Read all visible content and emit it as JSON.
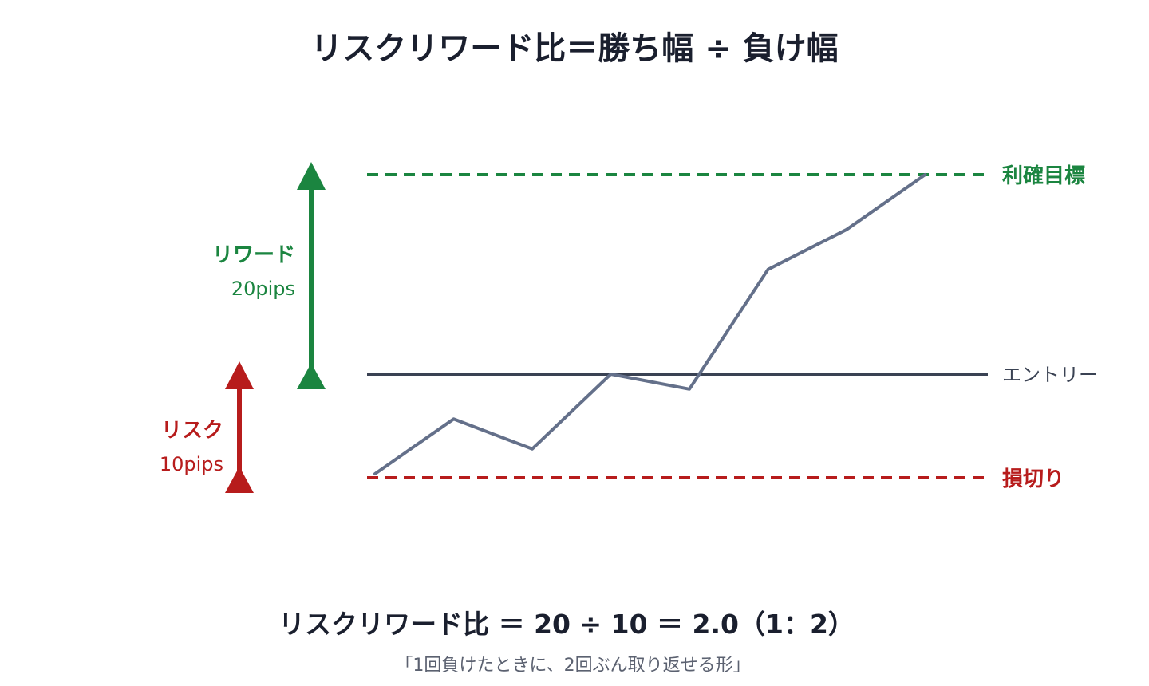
{
  "title": "リスクリワード比＝勝ち幅 ÷ 負け幅",
  "levels": {
    "take_profit": "利確目標",
    "entry": "エントリー",
    "stop_loss": "損切り"
  },
  "reward": {
    "label": "リワード",
    "value": "20pips"
  },
  "risk": {
    "label": "リスク",
    "value": "10pips"
  },
  "formula": "リスクリワード比 ＝ 20 ÷ 10 ＝ 2.0（1：2）",
  "caption": "「1回負けたときに、2回ぶん取り返せる形」",
  "colors": {
    "reward": "#1b8540",
    "risk": "#b71c1c",
    "entry": "#3a4253",
    "price": "#64708a",
    "text": "#1a1f2e"
  },
  "price_path": {
    "entry_price": 0,
    "take_profit_price": 20,
    "stop_loss_price": -10,
    "unit": "pips",
    "points": [
      -10,
      -4.5,
      -7.5,
      0,
      -1.5,
      10.5,
      14.5,
      20
    ]
  }
}
